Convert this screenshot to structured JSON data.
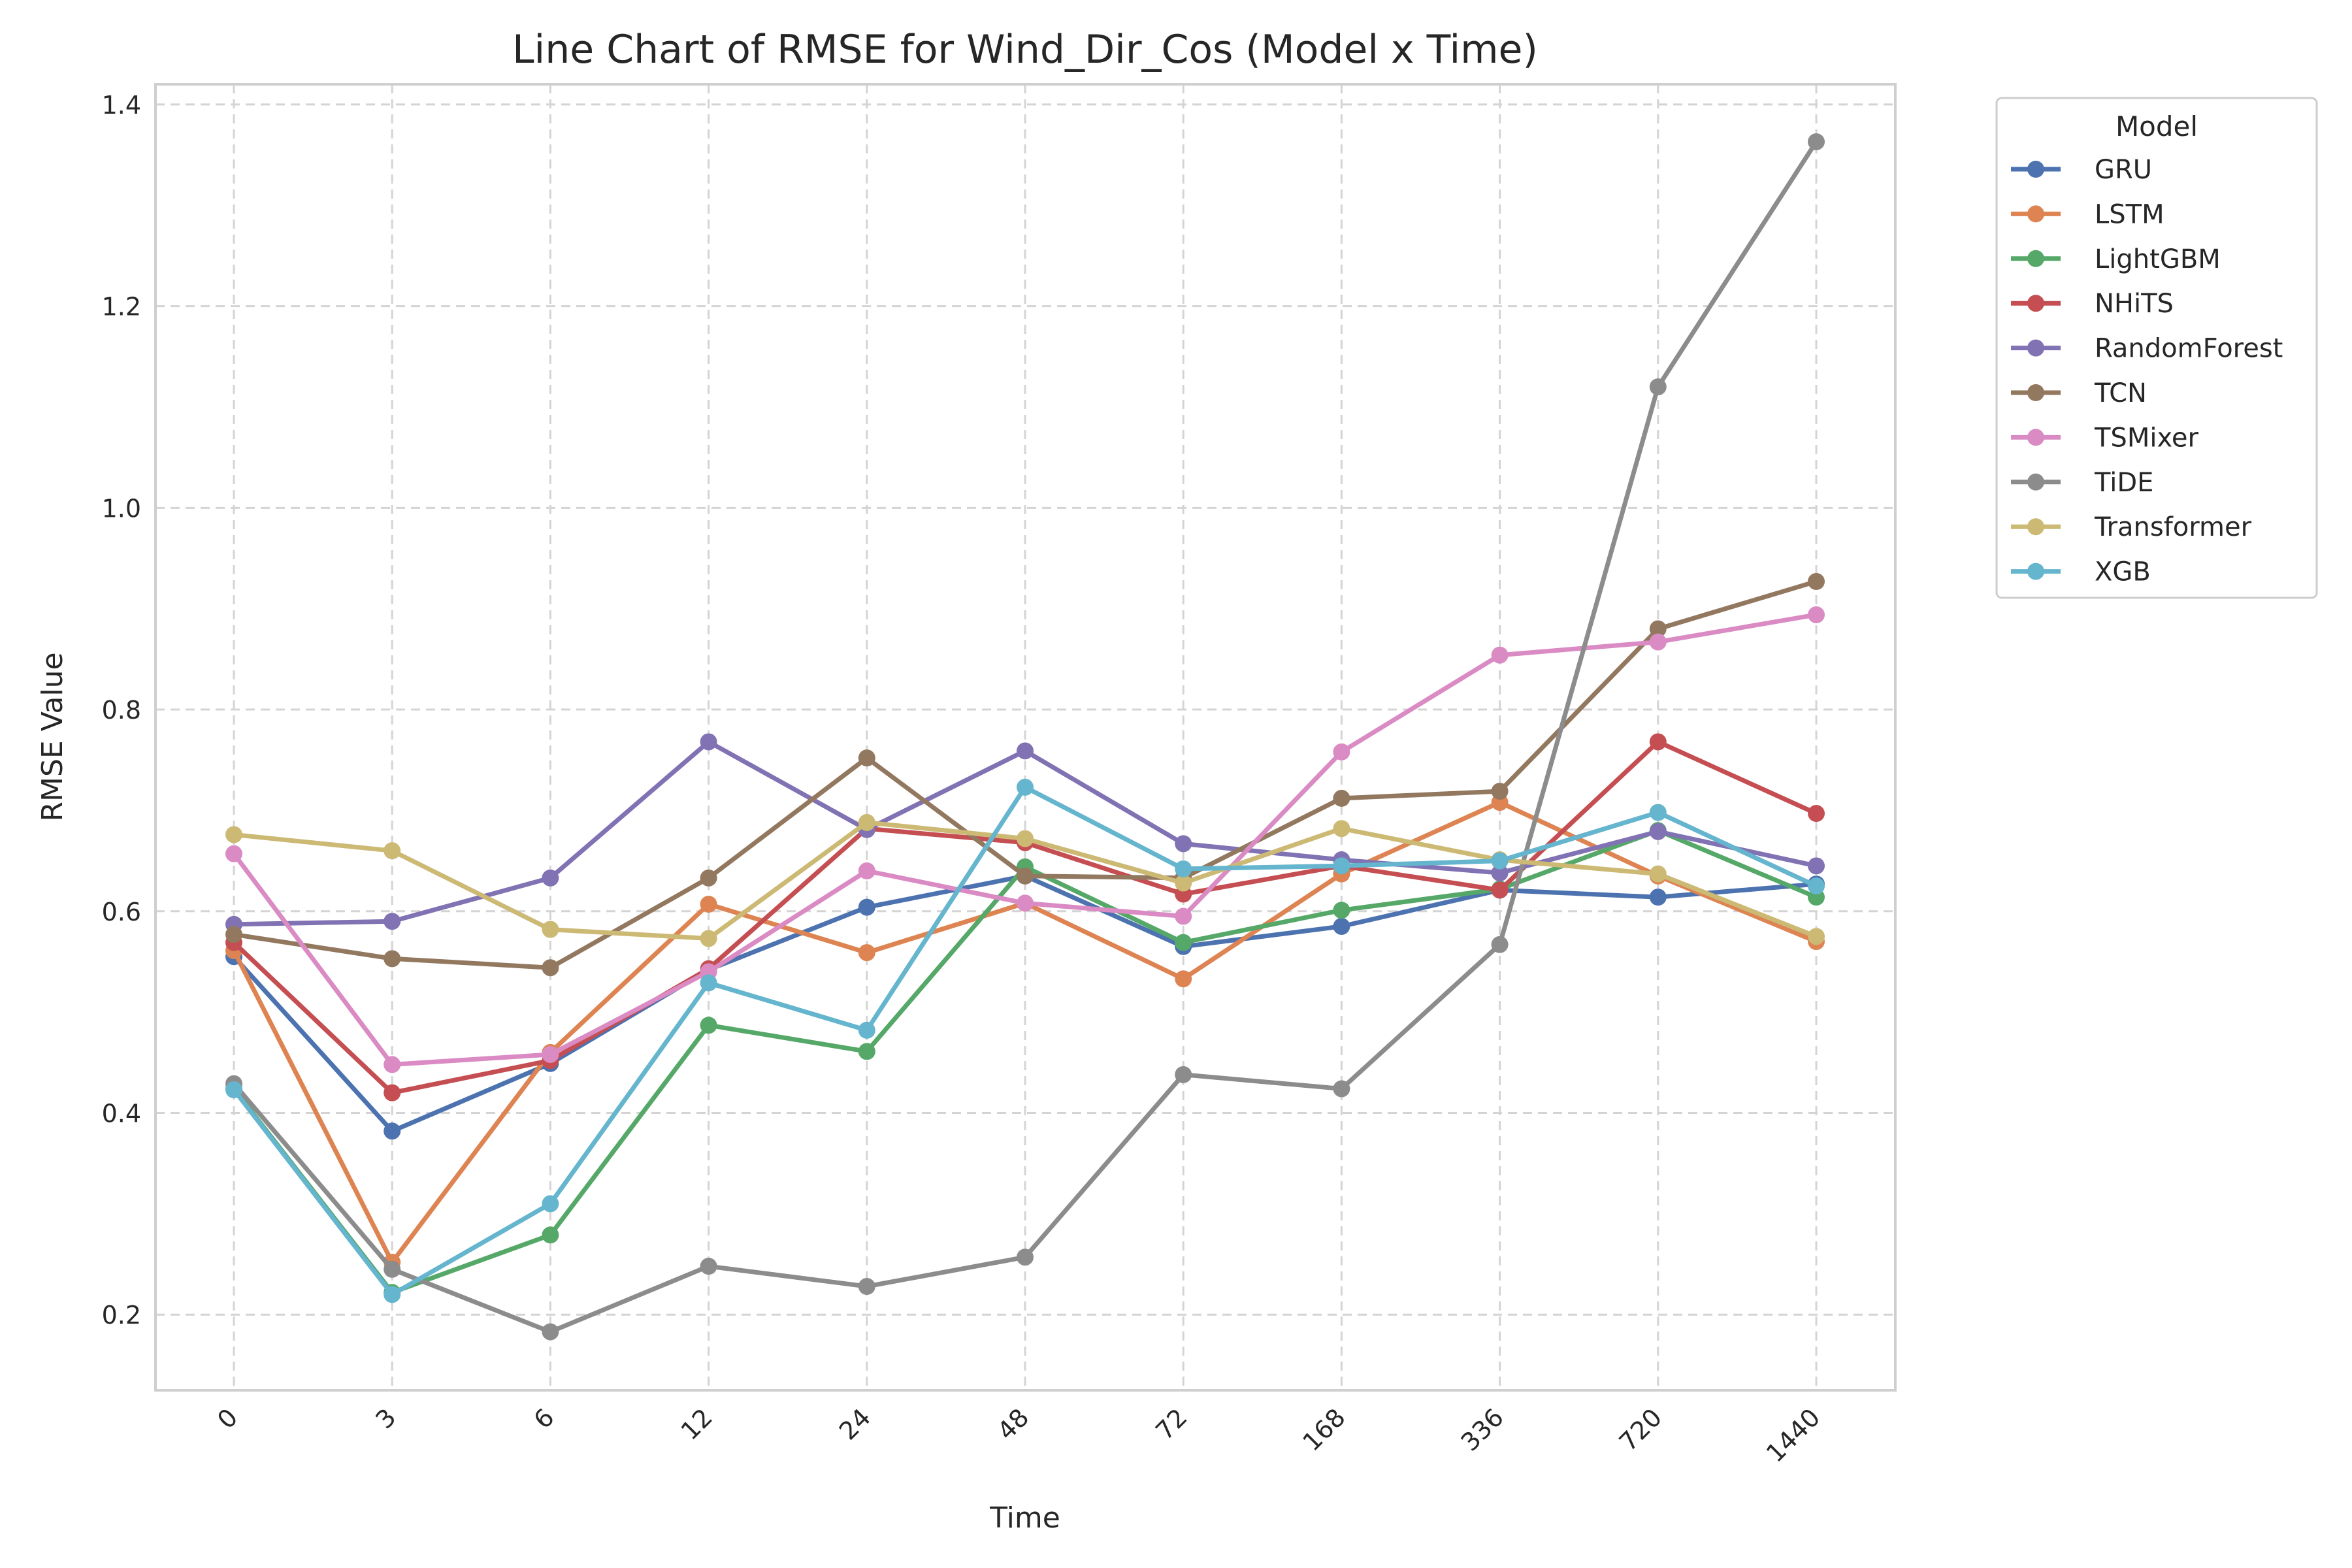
{
  "chart_data": {
    "type": "line",
    "title": "Line Chart of RMSE for Wind_Dir_Cos (Model x Time)",
    "xlabel": "Time",
    "ylabel": "RMSE Value",
    "categories": [
      "0",
      "3",
      "6",
      "12",
      "24",
      "48",
      "72",
      "168",
      "336",
      "720",
      "1440"
    ],
    "ylim": [
      0.125,
      1.42
    ],
    "yticks": [
      0.2,
      0.4,
      0.6,
      0.8,
      1.0,
      1.2,
      1.4
    ],
    "ytick_labels": [
      "0.2",
      "0.4",
      "0.6",
      "0.8",
      "1.0",
      "1.2",
      "1.4"
    ],
    "grid": true,
    "legend": {
      "title": "Model",
      "placement": "outside-top-right"
    },
    "series": [
      {
        "name": "GRU",
        "color": "#4c72b0",
        "values": [
          0.555,
          0.382,
          0.449,
          0.542,
          0.604,
          0.635,
          0.565,
          0.585,
          0.621,
          0.614,
          0.627
        ]
      },
      {
        "name": "LSTM",
        "color": "#dd8452",
        "values": [
          0.561,
          0.252,
          0.46,
          0.607,
          0.559,
          0.608,
          0.533,
          0.637,
          0.708,
          0.635,
          0.57
        ]
      },
      {
        "name": "LightGBM",
        "color": "#55a868",
        "values": [
          0.424,
          0.222,
          0.279,
          0.487,
          0.461,
          0.644,
          0.569,
          0.601,
          0.622,
          0.68,
          0.614
        ]
      },
      {
        "name": "NHiTS",
        "color": "#c44e52",
        "values": [
          0.569,
          0.42,
          0.452,
          0.543,
          0.682,
          0.668,
          0.617,
          0.645,
          0.621,
          0.768,
          0.697
        ]
      },
      {
        "name": "RandomForest",
        "color": "#8172b3",
        "values": [
          0.587,
          0.59,
          0.633,
          0.768,
          0.681,
          0.759,
          0.667,
          0.651,
          0.638,
          0.679,
          0.645
        ]
      },
      {
        "name": "TCN",
        "color": "#937860",
        "values": [
          0.577,
          0.553,
          0.544,
          0.633,
          0.752,
          0.635,
          0.633,
          0.712,
          0.719,
          0.88,
          0.927
        ]
      },
      {
        "name": "TSMixer",
        "color": "#da8bc3",
        "values": [
          0.657,
          0.448,
          0.458,
          0.54,
          0.64,
          0.608,
          0.595,
          0.758,
          0.854,
          0.867,
          0.894
        ]
      },
      {
        "name": "TiDE",
        "color": "#8c8c8c",
        "values": [
          0.429,
          0.245,
          0.183,
          0.248,
          0.228,
          0.257,
          0.438,
          0.424,
          0.567,
          1.12,
          1.363
        ]
      },
      {
        "name": "Transformer",
        "color": "#ccb974",
        "values": [
          0.676,
          0.66,
          0.582,
          0.573,
          0.688,
          0.672,
          0.628,
          0.682,
          0.651,
          0.637,
          0.575
        ]
      },
      {
        "name": "XGB",
        "color": "#64b5cd",
        "values": [
          0.423,
          0.22,
          0.31,
          0.529,
          0.482,
          0.723,
          0.642,
          0.645,
          0.65,
          0.698,
          0.625
        ]
      }
    ]
  }
}
